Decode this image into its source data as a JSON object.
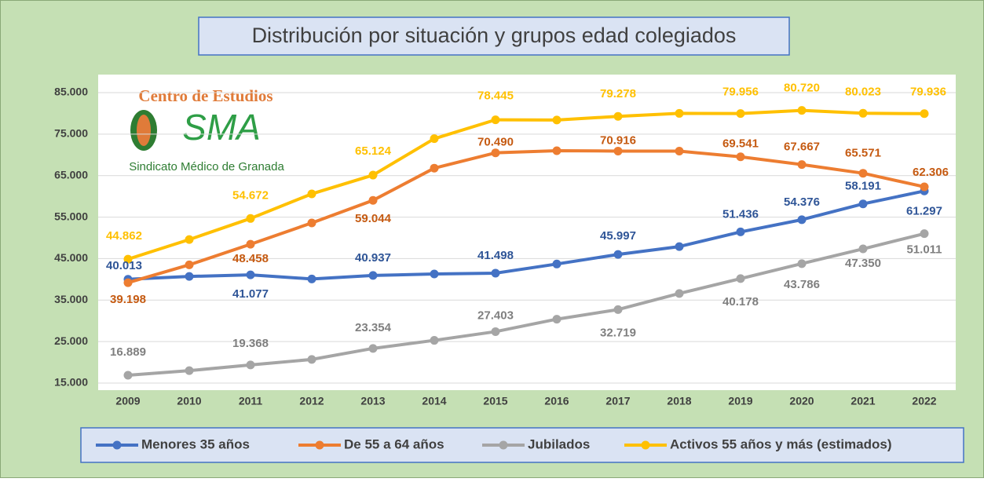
{
  "chart_data": {
    "type": "line",
    "title": "Distribución por situación y grupos edad colegiados",
    "logo": {
      "heading": "Centro de Estudios",
      "mark": "SMA",
      "caption": "Sindicato Médico de Granada"
    },
    "categories": [
      "2009",
      "2010",
      "2011",
      "2012",
      "2013",
      "2014",
      "2015",
      "2016",
      "2017",
      "2018",
      "2019",
      "2020",
      "2021",
      "2022"
    ],
    "ylim": [
      15000,
      85000
    ],
    "yticks": [
      {
        "value": 15000,
        "label": "15.000"
      },
      {
        "value": 25000,
        "label": "25.000"
      },
      {
        "value": 35000,
        "label": "35.000"
      },
      {
        "value": 45000,
        "label": "45.000"
      },
      {
        "value": 55000,
        "label": "55.000"
      },
      {
        "value": 65000,
        "label": "65.000"
      },
      {
        "value": 75000,
        "label": "75.000"
      },
      {
        "value": 85000,
        "label": "85.000"
      }
    ],
    "grid": true,
    "legend": "bottom",
    "series": [
      {
        "name": "Menores 35 años",
        "color": "#4472c4",
        "values": [
          40013,
          40700,
          41077,
          40100,
          40937,
          41300,
          41498,
          43700,
          45997,
          47900,
          51436,
          54376,
          58191,
          61297
        ],
        "value_labels": [
          "40.013",
          null,
          "41.077",
          null,
          "40.937",
          null,
          "41.498",
          null,
          "45.997",
          null,
          "51.436",
          "54.376",
          "58.191",
          "61.297"
        ]
      },
      {
        "name": "De 55 a 64 años",
        "color": "#ed7d31",
        "values": [
          39198,
          43500,
          48458,
          53600,
          59044,
          66800,
          70490,
          71000,
          70916,
          70900,
          69541,
          67667,
          65571,
          62306
        ],
        "value_labels": [
          "39.198",
          null,
          "48.458",
          null,
          "59.044",
          null,
          "70.490",
          null,
          "70.916",
          null,
          "69.541",
          "67.667",
          "65.571",
          "62.306"
        ]
      },
      {
        "name": "Jubilados",
        "color": "#a5a5a5",
        "values": [
          16889,
          18000,
          19368,
          20700,
          23354,
          25300,
          27403,
          30400,
          32719,
          36600,
          40178,
          43786,
          47350,
          51011
        ],
        "value_labels": [
          "16.889",
          null,
          "19.368",
          null,
          "23.354",
          null,
          "27.403",
          null,
          "32.719",
          null,
          "40.178",
          "43.786",
          "47.350",
          "51.011"
        ]
      },
      {
        "name": "Activos 55 años y más (estimados)",
        "color": "#ffc000",
        "values": [
          44862,
          49600,
          54672,
          60600,
          65124,
          73900,
          78445,
          78400,
          79278,
          80000,
          79956,
          80720,
          80023,
          79936
        ],
        "value_labels": [
          "44.862",
          null,
          "54.672",
          null,
          "65.124",
          null,
          "78.445",
          null,
          "79.278",
          null,
          "79.956",
          "80.720",
          "80.023",
          "79.936"
        ]
      }
    ]
  }
}
